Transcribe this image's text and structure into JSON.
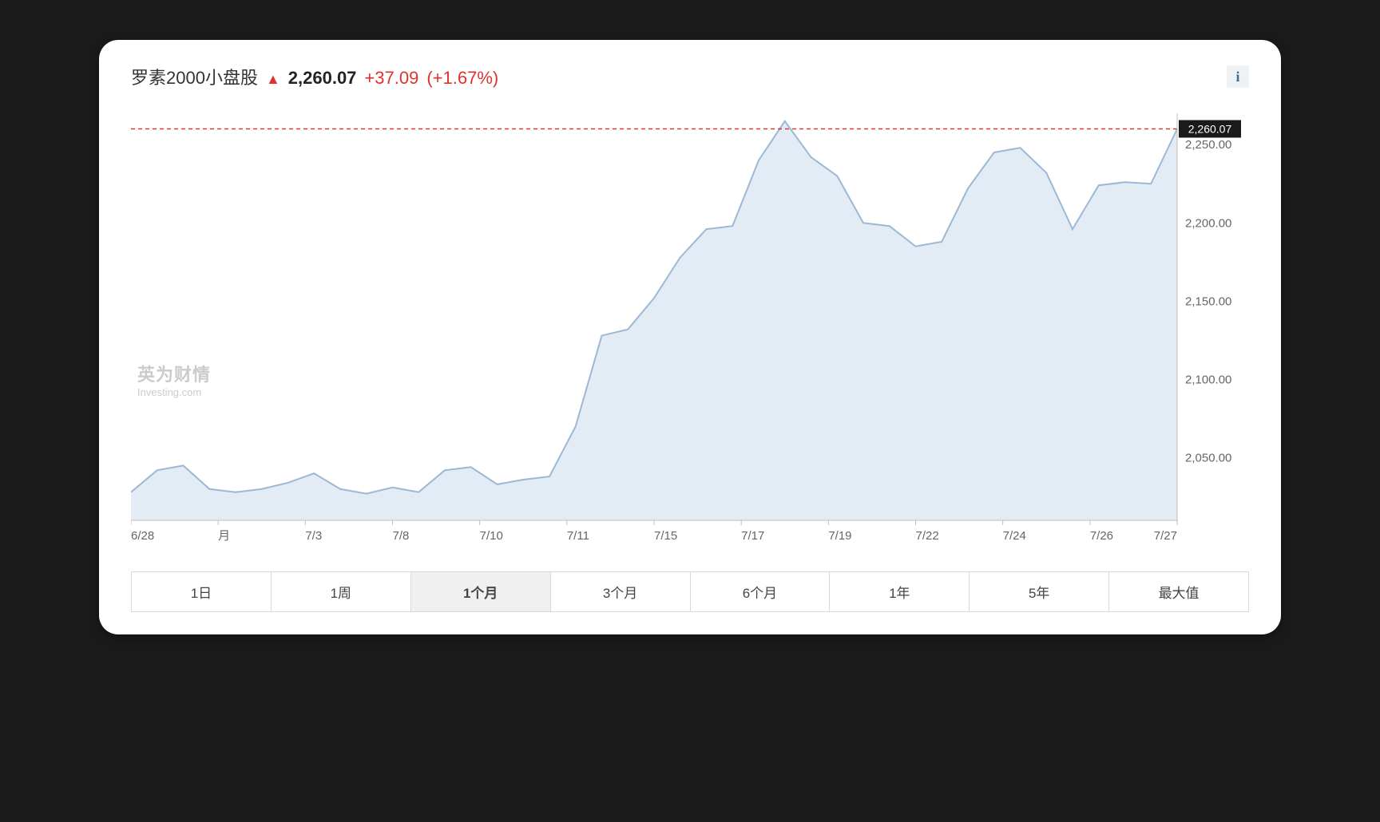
{
  "header": {
    "title": "罗素2000小盘股",
    "arrow": "▲",
    "price": "2,260.07",
    "change_value": "+37.09",
    "change_pct": "(+1.67%)",
    "info_symbol": "i"
  },
  "chart": {
    "type": "area",
    "ylim": [
      2010,
      2270
    ],
    "yticks": [
      2050.0,
      2100.0,
      2150.0,
      2200.0,
      2250.0
    ],
    "ytick_labels": [
      "2,050.00",
      "2,100.00",
      "2,150.00",
      "2,200.00",
      "2,250.00"
    ],
    "current_value": 2260.07,
    "current_label": "2,260.07",
    "line_color": "#9db8d4",
    "fill_color": "#e3ebf4",
    "current_line_color": "#d13b3b",
    "current_label_bg": "#1a1a1a",
    "current_label_text_color": "#ffffff",
    "grid_color": "#bfbfbf",
    "axis_text_color": "#666666",
    "background_color": "#ffffff",
    "label_fontsize": 15,
    "line_width": 2,
    "x_labels": [
      "6/28",
      "月",
      "7/3",
      "7/8",
      "7/10",
      "7/11",
      "7/15",
      "7/17",
      "7/19",
      "7/22",
      "7/24",
      "7/26",
      "7/27"
    ],
    "data": [
      {
        "i": 0,
        "v": 2028
      },
      {
        "i": 1,
        "v": 2042
      },
      {
        "i": 2,
        "v": 2045
      },
      {
        "i": 3,
        "v": 2030
      },
      {
        "i": 4,
        "v": 2028
      },
      {
        "i": 5,
        "v": 2030
      },
      {
        "i": 6,
        "v": 2034
      },
      {
        "i": 7,
        "v": 2040
      },
      {
        "i": 8,
        "v": 2030
      },
      {
        "i": 9,
        "v": 2027
      },
      {
        "i": 10,
        "v": 2031
      },
      {
        "i": 11,
        "v": 2028
      },
      {
        "i": 12,
        "v": 2042
      },
      {
        "i": 13,
        "v": 2044
      },
      {
        "i": 14,
        "v": 2033
      },
      {
        "i": 15,
        "v": 2036
      },
      {
        "i": 16,
        "v": 2038
      },
      {
        "i": 17,
        "v": 2070
      },
      {
        "i": 18,
        "v": 2128
      },
      {
        "i": 19,
        "v": 2132
      },
      {
        "i": 20,
        "v": 2152
      },
      {
        "i": 21,
        "v": 2178
      },
      {
        "i": 22,
        "v": 2196
      },
      {
        "i": 23,
        "v": 2198
      },
      {
        "i": 24,
        "v": 2240
      },
      {
        "i": 25,
        "v": 2265
      },
      {
        "i": 26,
        "v": 2242
      },
      {
        "i": 27,
        "v": 2230
      },
      {
        "i": 28,
        "v": 2200
      },
      {
        "i": 29,
        "v": 2198
      },
      {
        "i": 30,
        "v": 2185
      },
      {
        "i": 31,
        "v": 2188
      },
      {
        "i": 32,
        "v": 2222
      },
      {
        "i": 33,
        "v": 2245
      },
      {
        "i": 34,
        "v": 2248
      },
      {
        "i": 35,
        "v": 2232
      },
      {
        "i": 36,
        "v": 2196
      },
      {
        "i": 37,
        "v": 2224
      },
      {
        "i": 38,
        "v": 2226
      },
      {
        "i": 39,
        "v": 2225
      },
      {
        "i": 40,
        "v": 2260
      }
    ]
  },
  "watermark": {
    "line1": "英为财情",
    "line2": "Investing.com"
  },
  "tabs": {
    "items": [
      "1日",
      "1周",
      "1个月",
      "3个月",
      "6个月",
      "1年",
      "5年",
      "最大值"
    ],
    "active_index": 2
  }
}
